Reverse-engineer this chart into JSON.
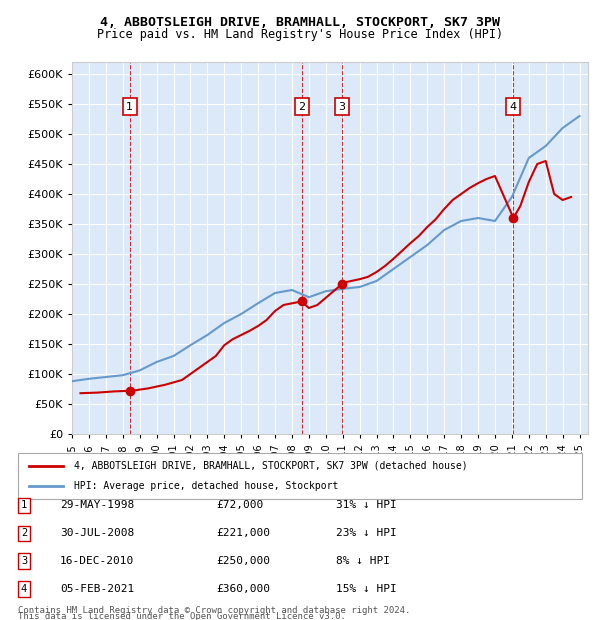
{
  "title": "4, ABBOTSLEIGH DRIVE, BRAMHALL, STOCKPORT, SK7 3PW",
  "subtitle": "Price paid vs. HM Land Registry's House Price Index (HPI)",
  "footer1": "Contains HM Land Registry data © Crown copyright and database right 2024.",
  "footer2": "This data is licensed under the Open Government Licence v3.0.",
  "legend_label_red": "4, ABBOTSLEIGH DRIVE, BRAMHALL, STOCKPORT, SK7 3PW (detached house)",
  "legend_label_blue": "HPI: Average price, detached house, Stockport",
  "sales": [
    {
      "num": 1,
      "date": "29-MAY-1998",
      "price": 72000,
      "hpi_pct": "31% ↓ HPI",
      "year": 1998.41
    },
    {
      "num": 2,
      "date": "30-JUL-2008",
      "price": 221000,
      "hpi_pct": "23% ↓ HPI",
      "year": 2008.58
    },
    {
      "num": 3,
      "date": "16-DEC-2010",
      "price": 250000,
      "hpi_pct": "8% ↓ HPI",
      "year": 2010.96
    },
    {
      "num": 4,
      "date": "05-FEB-2021",
      "price": 360000,
      "hpi_pct": "15% ↓ HPI",
      "year": 2021.09
    }
  ],
  "hpi_years": [
    1995,
    1996,
    1997,
    1998,
    1999,
    2000,
    2001,
    2002,
    2003,
    2004,
    2005,
    2006,
    2007,
    2008,
    2009,
    2010,
    2011,
    2012,
    2013,
    2014,
    2015,
    2016,
    2017,
    2018,
    2019,
    2020,
    2021,
    2022,
    2023,
    2024,
    2025
  ],
  "hpi_values": [
    88000,
    92000,
    95000,
    98000,
    106000,
    120000,
    130000,
    148000,
    165000,
    185000,
    200000,
    218000,
    235000,
    240000,
    228000,
    238000,
    242000,
    245000,
    255000,
    275000,
    295000,
    315000,
    340000,
    355000,
    360000,
    355000,
    395000,
    460000,
    480000,
    510000,
    530000
  ],
  "price_years": [
    1995.5,
    1996,
    1996.5,
    1997,
    1997.5,
    1998.41,
    1998.8,
    1999,
    1999.5,
    2000,
    2000.5,
    2001,
    2001.5,
    2002,
    2002.5,
    2003,
    2003.5,
    2004,
    2004.5,
    2005,
    2005.5,
    2006,
    2006.5,
    2007,
    2007.5,
    2008.58,
    2008.8,
    2009,
    2009.5,
    2010.96,
    2011,
    2011.5,
    2012,
    2012.5,
    2013,
    2013.5,
    2014,
    2014.5,
    2015,
    2015.5,
    2016,
    2016.5,
    2017,
    2017.5,
    2018,
    2018.5,
    2019,
    2019.5,
    2020,
    2021.09,
    2021.5,
    2022,
    2022.5,
    2023,
    2023.5,
    2024,
    2024.5
  ],
  "price_values": [
    68000,
    68500,
    69000,
    70000,
    71000,
    72000,
    73000,
    74000,
    76000,
    79000,
    82000,
    86000,
    90000,
    100000,
    110000,
    120000,
    130000,
    148000,
    158000,
    165000,
    172000,
    180000,
    190000,
    205000,
    215000,
    221000,
    215000,
    210000,
    215000,
    250000,
    252000,
    255000,
    258000,
    262000,
    270000,
    280000,
    292000,
    305000,
    318000,
    330000,
    345000,
    358000,
    375000,
    390000,
    400000,
    410000,
    418000,
    425000,
    430000,
    360000,
    380000,
    420000,
    450000,
    455000,
    400000,
    390000,
    395000
  ],
  "bg_color": "#dce9f8",
  "red_color": "#cc0000",
  "blue_color": "#6699cc",
  "marker_color": "#cc0000",
  "ylim": [
    0,
    620000
  ],
  "xlim": [
    1995,
    2025.5
  ],
  "yticks": [
    0,
    50000,
    100000,
    150000,
    200000,
    250000,
    300000,
    350000,
    400000,
    450000,
    500000,
    550000,
    600000
  ],
  "xticks": [
    1995,
    1996,
    1997,
    1998,
    1999,
    2000,
    2001,
    2002,
    2003,
    2004,
    2005,
    2006,
    2007,
    2008,
    2009,
    2010,
    2011,
    2012,
    2013,
    2014,
    2015,
    2016,
    2017,
    2018,
    2019,
    2020,
    2021,
    2022,
    2023,
    2024,
    2025
  ]
}
